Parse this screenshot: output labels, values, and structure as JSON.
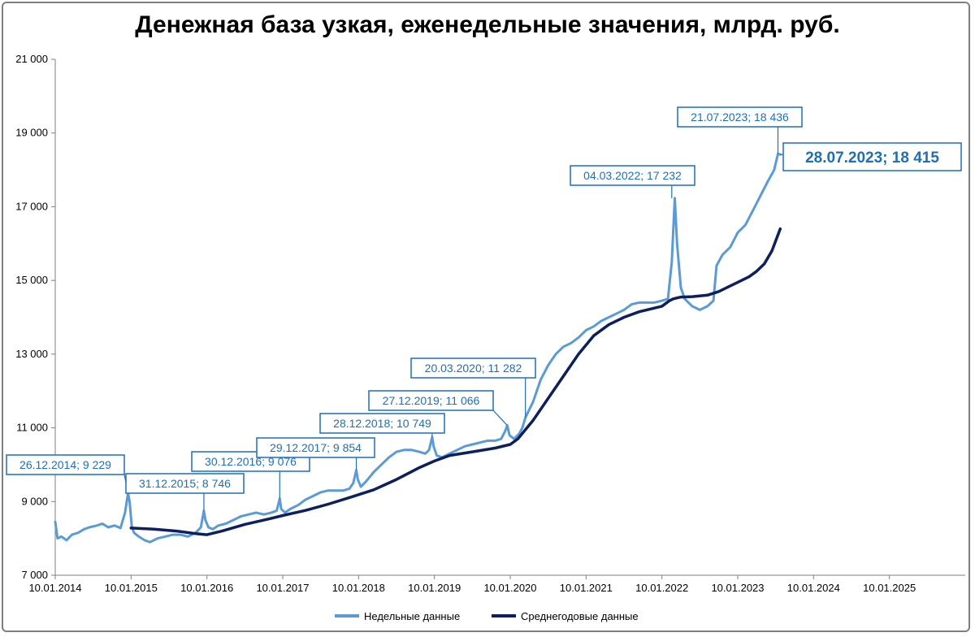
{
  "chart_data": {
    "type": "line",
    "title": "Денежная база узкая, еженедельные значения, млрд. руб.",
    "xlabel": "",
    "ylabel": "",
    "ylim": [
      7000,
      21000
    ],
    "y_ticks": [
      7000,
      9000,
      11000,
      13000,
      15000,
      17000,
      19000,
      21000
    ],
    "y_tick_labels": [
      "7 000",
      "9 000",
      "11 000",
      "13 000",
      "15 000",
      "17 000",
      "19 000",
      "21 000"
    ],
    "xlim": [
      2014.0,
      2026.0
    ],
    "x_ticks": [
      2014,
      2015,
      2016,
      2017,
      2018,
      2019,
      2020,
      2021,
      2022,
      2023,
      2024,
      2025
    ],
    "x_tick_labels": [
      "10.01.2014",
      "10.01.2015",
      "10.01.2016",
      "10.01.2017",
      "10.01.2018",
      "10.01.2019",
      "10.01.2020",
      "10.01.2021",
      "10.01.2022",
      "10.01.2023",
      "10.01.2024",
      "10.01.2025"
    ],
    "grid": false,
    "legend_position": "bottom",
    "series": [
      {
        "name": "Недельные данные",
        "color": "#5b9bd5",
        "x": [
          2014.0,
          2014.03,
          2014.08,
          2014.15,
          2014.22,
          2014.3,
          2014.38,
          2014.45,
          2014.55,
          2014.62,
          2014.7,
          2014.78,
          2014.86,
          2014.92,
          2014.96,
          2014.98,
          2015.01,
          2015.04,
          2015.1,
          2015.18,
          2015.25,
          2015.35,
          2015.45,
          2015.55,
          2015.65,
          2015.75,
          2015.85,
          2015.92,
          2015.96,
          2015.98,
          2016.02,
          2016.08,
          2016.15,
          2016.25,
          2016.35,
          2016.45,
          2016.55,
          2016.65,
          2016.75,
          2016.85,
          2016.92,
          2016.96,
          2016.98,
          2017.03,
          2017.1,
          2017.2,
          2017.3,
          2017.4,
          2017.5,
          2017.6,
          2017.7,
          2017.8,
          2017.88,
          2017.93,
          2017.97,
          2017.99,
          2018.03,
          2018.1,
          2018.2,
          2018.3,
          2018.4,
          2018.5,
          2018.6,
          2018.7,
          2018.8,
          2018.88,
          2018.93,
          2018.97,
          2018.99,
          2019.03,
          2019.1,
          2019.2,
          2019.3,
          2019.4,
          2019.5,
          2019.6,
          2019.7,
          2019.8,
          2019.88,
          2019.93,
          2019.96,
          2019.99,
          2020.05,
          2020.12,
          2020.16,
          2020.2,
          2020.3,
          2020.4,
          2020.5,
          2020.6,
          2020.7,
          2020.8,
          2020.9,
          2021.0,
          2021.1,
          2021.2,
          2021.3,
          2021.4,
          2021.5,
          2021.6,
          2021.7,
          2021.8,
          2021.9,
          2022.0,
          2022.08,
          2022.13,
          2022.17,
          2022.2,
          2022.25,
          2022.3,
          2022.4,
          2022.5,
          2022.6,
          2022.68,
          2022.72,
          2022.8,
          2022.9,
          2023.0,
          2023.1,
          2023.2,
          2023.3,
          2023.4,
          2023.48,
          2023.53,
          2023.56
        ],
        "y": [
          8450,
          8000,
          8050,
          7950,
          8100,
          8150,
          8250,
          8300,
          8350,
          8400,
          8300,
          8350,
          8280,
          8700,
          9229,
          9000,
          8300,
          8150,
          8050,
          7950,
          7900,
          8000,
          8050,
          8100,
          8100,
          8050,
          8150,
          8300,
          8746,
          8500,
          8300,
          8250,
          8350,
          8400,
          8500,
          8600,
          8650,
          8700,
          8650,
          8700,
          8750,
          9076,
          8800,
          8700,
          8800,
          8900,
          9050,
          9150,
          9250,
          9300,
          9300,
          9300,
          9350,
          9500,
          9854,
          9600,
          9400,
          9550,
          9800,
          10000,
          10200,
          10350,
          10400,
          10400,
          10350,
          10300,
          10400,
          10749,
          10500,
          10250,
          10200,
          10300,
          10400,
          10500,
          10550,
          10600,
          10650,
          10650,
          10700,
          10900,
          11066,
          10800,
          10700,
          10850,
          11000,
          11282,
          11700,
          12300,
          12700,
          13000,
          13200,
          13300,
          13450,
          13650,
          13750,
          13900,
          14000,
          14100,
          14200,
          14350,
          14400,
          14400,
          14400,
          14450,
          14500,
          15500,
          17232,
          16000,
          14800,
          14500,
          14300,
          14200,
          14300,
          14450,
          15400,
          15700,
          15900,
          16300,
          16500,
          16900,
          17300,
          17700,
          18000,
          18436,
          18415
        ]
      },
      {
        "name": "Среднегодовые данные",
        "color": "#0d1f5c",
        "x": [
          2015.0,
          2015.3,
          2015.6,
          2015.85,
          2016.0,
          2016.2,
          2016.5,
          2016.8,
          2017.0,
          2017.3,
          2017.6,
          2017.9,
          2018.2,
          2018.5,
          2018.8,
          2019.0,
          2019.2,
          2019.5,
          2019.8,
          2020.0,
          2020.1,
          2020.3,
          2020.5,
          2020.7,
          2020.9,
          2021.1,
          2021.3,
          2021.5,
          2021.7,
          2021.9,
          2022.0,
          2022.1,
          2022.15,
          2022.25,
          2022.4,
          2022.6,
          2022.75,
          2022.9,
          2023.0,
          2023.15,
          2023.25,
          2023.35,
          2023.45,
          2023.56
        ],
        "y": [
          8280,
          8250,
          8200,
          8130,
          8100,
          8200,
          8380,
          8520,
          8620,
          8760,
          8930,
          9120,
          9320,
          9600,
          9920,
          10100,
          10250,
          10350,
          10450,
          10550,
          10700,
          11200,
          11800,
          12400,
          13000,
          13500,
          13800,
          14000,
          14150,
          14250,
          14300,
          14450,
          14500,
          14550,
          14560,
          14600,
          14700,
          14850,
          14950,
          15100,
          15250,
          15450,
          15800,
          16400
        ]
      }
    ],
    "annotations": [
      {
        "label": "26.12.2014; 9 229",
        "x": 2014.96,
        "y": 9229,
        "emphasis": false
      },
      {
        "label": "31.12.2015; 8 746",
        "x": 2015.96,
        "y": 8746,
        "emphasis": false
      },
      {
        "label": "30.12.2016; 9 076",
        "x": 2016.96,
        "y": 9076,
        "emphasis": false
      },
      {
        "label": "29.12.2017; 9 854",
        "x": 2017.97,
        "y": 9854,
        "emphasis": false
      },
      {
        "label": "28.12.2018; 10 749",
        "x": 2018.97,
        "y": 10749,
        "emphasis": false
      },
      {
        "label": "27.12.2019; 11 066",
        "x": 2019.96,
        "y": 11066,
        "emphasis": false
      },
      {
        "label": "20.03.2020; 11 282",
        "x": 2020.2,
        "y": 11282,
        "emphasis": false
      },
      {
        "label": "04.03.2022; 17 232",
        "x": 2022.13,
        "y": 17232,
        "emphasis": false
      },
      {
        "label": "21.07.2023; 18 436",
        "x": 2023.53,
        "y": 18436,
        "emphasis": false
      },
      {
        "label": "28.07.2023; 18 415",
        "x": 2023.56,
        "y": 18415,
        "emphasis": true
      }
    ]
  }
}
